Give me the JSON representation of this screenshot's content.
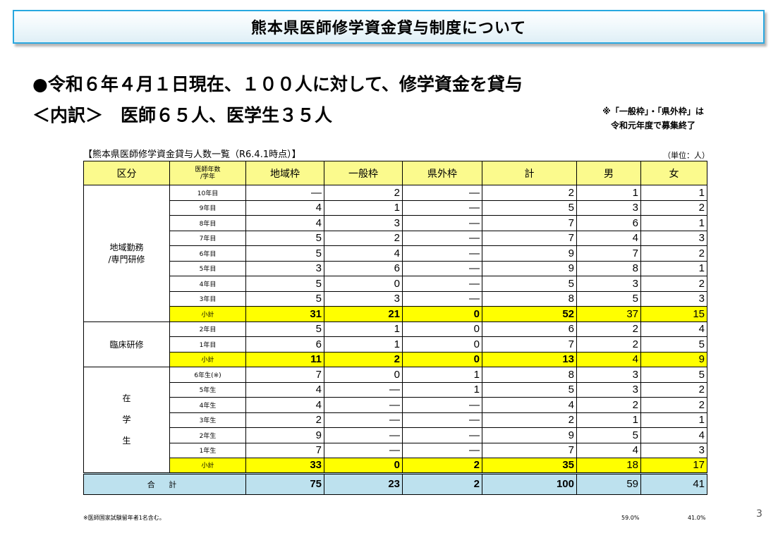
{
  "title": "熊本県医師修学資金貸与制度について",
  "headline": "●令和６年４月１日現在、１００人に対して、修学資金を貸与",
  "breakdown": "＜内訳＞　医師６５人、医学生３５人",
  "note": {
    "line1": "※「一般枠」・「県外枠」は",
    "line2": "令和元年度で募集終了"
  },
  "table_title": "【熊本県医師修学資金貸与人数一覧（R6.4.1時点）】",
  "unit": "（単位：人）",
  "headers": {
    "category": "区分",
    "year_line1": "医師年数",
    "year_line2": "/学年",
    "regional": "地域枠",
    "general": "一般枠",
    "outside": "県外枠",
    "total": "計",
    "male": "男",
    "female": "女"
  },
  "groups": {
    "g1": {
      "line1": "地域勤務",
      "line2": "/専門研修"
    },
    "g2": {
      "label": "臨床研修"
    },
    "g3": {
      "c1": "在",
      "c2": "学",
      "c3": "生"
    }
  },
  "rows": [
    [
      "10年目",
      "―",
      "2",
      "―",
      "2",
      "1",
      "1"
    ],
    [
      "9年目",
      "4",
      "1",
      "―",
      "5",
      "3",
      "2"
    ],
    [
      "8年目",
      "4",
      "3",
      "―",
      "7",
      "6",
      "1"
    ],
    [
      "7年目",
      "5",
      "2",
      "―",
      "7",
      "4",
      "3"
    ],
    [
      "6年目",
      "5",
      "4",
      "―",
      "9",
      "7",
      "2"
    ],
    [
      "5年目",
      "3",
      "6",
      "―",
      "9",
      "8",
      "1"
    ],
    [
      "4年目",
      "5",
      "0",
      "―",
      "5",
      "3",
      "2"
    ],
    [
      "3年目",
      "5",
      "3",
      "―",
      "8",
      "5",
      "3"
    ],
    [
      "小計",
      "31",
      "21",
      "0",
      "52",
      "37",
      "15"
    ],
    [
      "2年目",
      "5",
      "1",
      "0",
      "6",
      "2",
      "4"
    ],
    [
      "1年目",
      "6",
      "1",
      "0",
      "7",
      "2",
      "5"
    ],
    [
      "小計",
      "11",
      "2",
      "0",
      "13",
      "4",
      "9"
    ],
    [
      "6年生(※)",
      "7",
      "0",
      "1",
      "8",
      "3",
      "5"
    ],
    [
      "5年生",
      "4",
      "―",
      "1",
      "5",
      "3",
      "2"
    ],
    [
      "4年生",
      "4",
      "―",
      "―",
      "4",
      "2",
      "2"
    ],
    [
      "3年生",
      "2",
      "―",
      "―",
      "2",
      "1",
      "1"
    ],
    [
      "2年生",
      "9",
      "―",
      "―",
      "9",
      "5",
      "4"
    ],
    [
      "1年生",
      "7",
      "―",
      "―",
      "7",
      "4",
      "3"
    ],
    [
      "小計",
      "33",
      "0",
      "2",
      "35",
      "18",
      "17"
    ]
  ],
  "total": [
    "合 計",
    "75",
    "23",
    "2",
    "100",
    "59",
    "41"
  ],
  "footnote": "※医師国家試験留年者1名含む。",
  "pct_male": "59.0%",
  "pct_female": "41.0%",
  "page_number": "3"
}
